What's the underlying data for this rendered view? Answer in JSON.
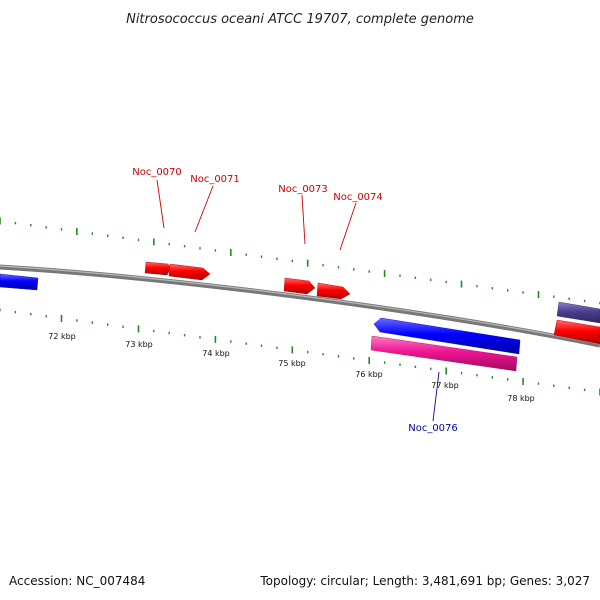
{
  "title": "Nitrosococcus oceani ATCC 19707, complete genome",
  "footer": {
    "accession": "Accession: NC_007484",
    "summary": "Topology: circular; Length: 3,481,691 bp; Genes: 3,027"
  },
  "ticks": [
    "72 kbp",
    "73 kbp",
    "74 kbp",
    "75 kbp",
    "76 kbp",
    "77 kbp",
    "78 kbp"
  ],
  "genes": [
    {
      "label": "Noc_0070",
      "color": "#cc0000"
    },
    {
      "label": "Noc_0071",
      "color": "#cc0000"
    },
    {
      "label": "Noc_0073",
      "color": "#cc0000"
    },
    {
      "label": "Noc_0074",
      "color": "#cc0000"
    },
    {
      "label": "Noc_0076",
      "color": "#0000aa"
    }
  ],
  "colors": {
    "forward_gene": "#ff0000",
    "reverse_gene": "#0000ff",
    "rna_gene": "#ee1493",
    "other_gene": "#4b3f8f",
    "backbone": "#808080",
    "tick_mark": "#228b22"
  }
}
